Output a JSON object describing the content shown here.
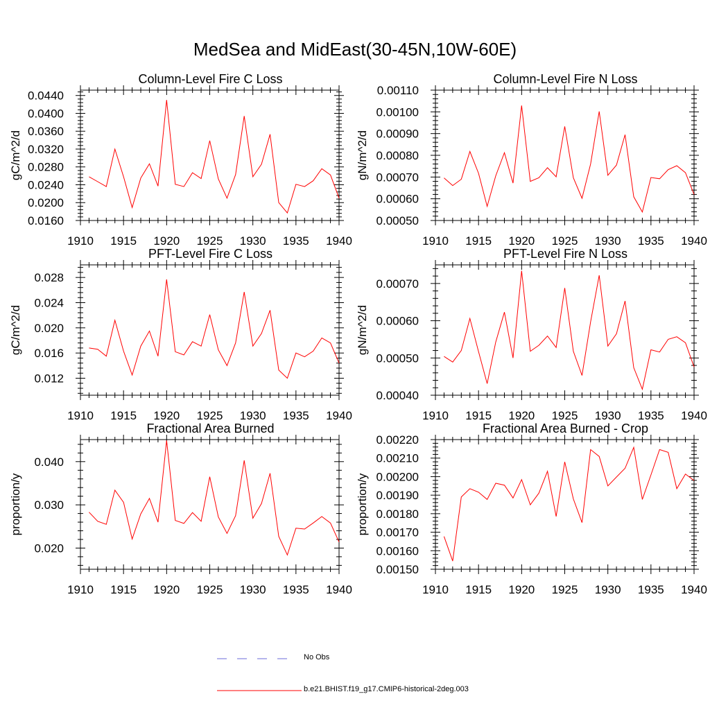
{
  "title": "MedSea and MidEast(30-45N,10W-60E)",
  "colors": {
    "model": "#ff0000",
    "obs": "#6b6bd8",
    "axis": "#000000"
  },
  "legend": [
    {
      "label": "No Obs",
      "style": "dashed",
      "color": "#6b6bd8"
    },
    {
      "label": "b.e21.BHIST.f19_g17.CMIP6-historical-2deg.003",
      "style": "solid",
      "color": "#ff0000"
    }
  ],
  "chart_data": [
    {
      "type": "line",
      "title": "Column-Level Fire C Loss",
      "ylabel": "gC/m^2/d",
      "xlim": [
        1910,
        1940
      ],
      "ylim": [
        0.016,
        0.0452
      ],
      "xticks": [
        1910,
        1915,
        1920,
        1925,
        1930,
        1935,
        1940
      ],
      "yticks": [
        0.016,
        0.02,
        0.024,
        0.028,
        0.032,
        0.036,
        0.04,
        0.044
      ],
      "ytick_labels": [
        "0.0160",
        "0.0200",
        "0.0240",
        "0.0280",
        "0.0320",
        "0.0360",
        "0.0400",
        "0.0440"
      ],
      "x": [
        1911,
        1912,
        1913,
        1914,
        1915,
        1916,
        1917,
        1918,
        1919,
        1920,
        1921,
        1922,
        1923,
        1924,
        1925,
        1926,
        1927,
        1928,
        1929,
        1930,
        1931,
        1932,
        1933,
        1934,
        1935,
        1936,
        1937,
        1938,
        1939,
        1940
      ],
      "series": [
        {
          "name": "b.e21.BHIST.f19_g17.CMIP6-historical-2deg.003",
          "values": [
            0.0258,
            0.0247,
            0.0236,
            0.032,
            0.0258,
            0.0189,
            0.0255,
            0.0287,
            0.0237,
            0.043,
            0.0241,
            0.0236,
            0.0267,
            0.0254,
            0.0339,
            0.0253,
            0.021,
            0.0263,
            0.0394,
            0.0258,
            0.0286,
            0.0353,
            0.02,
            0.0177,
            0.0241,
            0.0236,
            0.0249,
            0.0276,
            0.0262,
            0.021
          ]
        }
      ]
    },
    {
      "type": "line",
      "title": "Column-Level Fire N Loss",
      "ylabel": "gN/m^2/d",
      "xlim": [
        1910,
        1940
      ],
      "ylim": [
        0.0005,
        0.0011
      ],
      "xticks": [
        1910,
        1915,
        1920,
        1925,
        1930,
        1935,
        1940
      ],
      "yticks": [
        0.0005,
        0.0006,
        0.0007,
        0.0008,
        0.0009,
        0.001,
        0.0011
      ],
      "ytick_labels": [
        "0.00050",
        "0.00060",
        "0.00070",
        "0.00080",
        "0.00090",
        "0.00100",
        "0.00110"
      ],
      "x": [
        1911,
        1912,
        1913,
        1914,
        1915,
        1916,
        1917,
        1918,
        1919,
        1920,
        1921,
        1922,
        1923,
        1924,
        1925,
        1926,
        1927,
        1928,
        1929,
        1930,
        1931,
        1932,
        1933,
        1934,
        1935,
        1936,
        1937,
        1938,
        1939,
        1940
      ],
      "series": [
        {
          "name": "b.e21.BHIST.f19_g17.CMIP6-historical-2deg.003",
          "values": [
            0.000696,
            0.000661,
            0.00069,
            0.000818,
            0.000717,
            0.000565,
            0.000706,
            0.000812,
            0.000672,
            0.001029,
            0.00068,
            0.000697,
            0.000743,
            0.000701,
            0.000933,
            0.000697,
            0.000602,
            0.00076,
            0.001002,
            0.000708,
            0.000755,
            0.000895,
            0.000609,
            0.000539,
            0.000698,
            0.000692,
            0.000734,
            0.000752,
            0.00072,
            0.00062
          ]
        }
      ]
    },
    {
      "type": "line",
      "title": "PFT-Level Fire C Loss",
      "ylabel": "gC/m^2/d",
      "xlim": [
        1910,
        1940
      ],
      "ylim": [
        0.0093,
        0.03
      ],
      "xticks": [
        1910,
        1915,
        1920,
        1925,
        1930,
        1935,
        1940
      ],
      "yticks": [
        0.012,
        0.016,
        0.02,
        0.024,
        0.028
      ],
      "ytick_labels": [
        "0.012",
        "0.016",
        "0.020",
        "0.024",
        "0.028"
      ],
      "x": [
        1911,
        1912,
        1913,
        1914,
        1915,
        1916,
        1917,
        1918,
        1919,
        1920,
        1921,
        1922,
        1923,
        1924,
        1925,
        1926,
        1927,
        1928,
        1929,
        1930,
        1931,
        1932,
        1933,
        1934,
        1935,
        1936,
        1937,
        1938,
        1939,
        1940
      ],
      "series": [
        {
          "name": "b.e21.BHIST.f19_g17.CMIP6-historical-2deg.003",
          "values": [
            0.0168,
            0.0166,
            0.0155,
            0.0212,
            0.0163,
            0.0125,
            0.0171,
            0.0195,
            0.0155,
            0.0277,
            0.0162,
            0.0157,
            0.0178,
            0.0171,
            0.0221,
            0.0165,
            0.014,
            0.0176,
            0.0257,
            0.0171,
            0.0191,
            0.0228,
            0.0133,
            0.012,
            0.016,
            0.0154,
            0.0163,
            0.0184,
            0.0176,
            0.0144
          ]
        }
      ]
    },
    {
      "type": "line",
      "title": "PFT-Level Fire N Loss",
      "ylabel": "gN/m^2/d",
      "xlim": [
        1910,
        1940
      ],
      "ylim": [
        0.0004,
        0.00075
      ],
      "xticks": [
        1910,
        1915,
        1920,
        1925,
        1930,
        1935,
        1940
      ],
      "yticks": [
        0.0004,
        0.0005,
        0.0006,
        0.0007
      ],
      "ytick_labels": [
        "0.00040",
        "0.00050",
        "0.00060",
        "0.00070"
      ],
      "x": [
        1911,
        1912,
        1913,
        1914,
        1915,
        1916,
        1917,
        1918,
        1919,
        1920,
        1921,
        1922,
        1923,
        1924,
        1925,
        1926,
        1927,
        1928,
        1929,
        1930,
        1931,
        1932,
        1933,
        1934,
        1935,
        1936,
        1937,
        1938,
        1939,
        1940
      ],
      "series": [
        {
          "name": "b.e21.BHIST.f19_g17.CMIP6-historical-2deg.003",
          "values": [
            0.000504,
            0.000489,
            0.00052,
            0.000606,
            0.000517,
            0.000431,
            0.000543,
            0.000623,
            0.0005,
            0.000734,
            0.000518,
            0.000534,
            0.000559,
            0.000528,
            0.000688,
            0.000518,
            0.000453,
            0.000597,
            0.000722,
            0.000532,
            0.000565,
            0.000653,
            0.000474,
            0.000416,
            0.000522,
            0.000516,
            0.00055,
            0.000557,
            0.000541,
            0.000476
          ]
        }
      ]
    },
    {
      "type": "line",
      "title": "Fractional Area Burned",
      "ylabel": "proportion/y",
      "xlim": [
        1910,
        1940
      ],
      "ylim": [
        0.0151,
        0.0451
      ],
      "xticks": [
        1910,
        1915,
        1920,
        1925,
        1930,
        1935,
        1940
      ],
      "yticks": [
        0.02,
        0.03,
        0.04
      ],
      "ytick_labels": [
        "0.020",
        "0.030",
        "0.040"
      ],
      "x": [
        1911,
        1912,
        1913,
        1914,
        1915,
        1916,
        1917,
        1918,
        1919,
        1920,
        1921,
        1922,
        1923,
        1924,
        1925,
        1926,
        1927,
        1928,
        1929,
        1930,
        1931,
        1932,
        1933,
        1934,
        1935,
        1936,
        1937,
        1938,
        1939,
        1940
      ],
      "series": [
        {
          "name": "b.e21.BHIST.f19_g17.CMIP6-historical-2deg.003",
          "values": [
            0.0283,
            0.0262,
            0.0255,
            0.0334,
            0.0306,
            0.0221,
            0.0279,
            0.0315,
            0.026,
            0.0449,
            0.0264,
            0.0257,
            0.0282,
            0.0262,
            0.0365,
            0.0272,
            0.0234,
            0.0275,
            0.0403,
            0.0269,
            0.0303,
            0.0373,
            0.0227,
            0.0184,
            0.0246,
            0.0244,
            0.0258,
            0.0273,
            0.0258,
            0.0214
          ]
        }
      ]
    },
    {
      "type": "line",
      "title": "Fractional Area Burned - Crop",
      "ylabel": "proportion/y",
      "xlim": [
        1910,
        1940
      ],
      "ylim": [
        0.0015,
        0.0022
      ],
      "xticks": [
        1910,
        1915,
        1920,
        1925,
        1930,
        1935,
        1940
      ],
      "yticks": [
        0.0015,
        0.0016,
        0.0017,
        0.0018,
        0.0019,
        0.002,
        0.0021,
        0.0022
      ],
      "ytick_labels": [
        "0.00150",
        "0.00160",
        "0.00170",
        "0.00180",
        "0.00190",
        "0.00200",
        "0.00210",
        "0.00220"
      ],
      "x": [
        1911,
        1912,
        1913,
        1914,
        1915,
        1916,
        1917,
        1918,
        1919,
        1920,
        1921,
        1922,
        1923,
        1924,
        1925,
        1926,
        1927,
        1928,
        1929,
        1930,
        1931,
        1932,
        1933,
        1934,
        1935,
        1936,
        1937,
        1938,
        1939,
        1940
      ],
      "series": [
        {
          "name": "b.e21.BHIST.f19_g17.CMIP6-historical-2deg.003",
          "values": [
            0.001677,
            0.001544,
            0.00189,
            0.001935,
            0.001916,
            0.001877,
            0.001964,
            0.001954,
            0.001885,
            0.001984,
            0.001848,
            0.001911,
            0.002029,
            0.001785,
            0.00208,
            0.00188,
            0.001752,
            0.002146,
            0.002109,
            0.00195,
            0.001998,
            0.002045,
            0.002158,
            0.001877,
            0.002009,
            0.002146,
            0.002131,
            0.001935,
            0.002014,
            0.001979
          ]
        }
      ]
    }
  ]
}
